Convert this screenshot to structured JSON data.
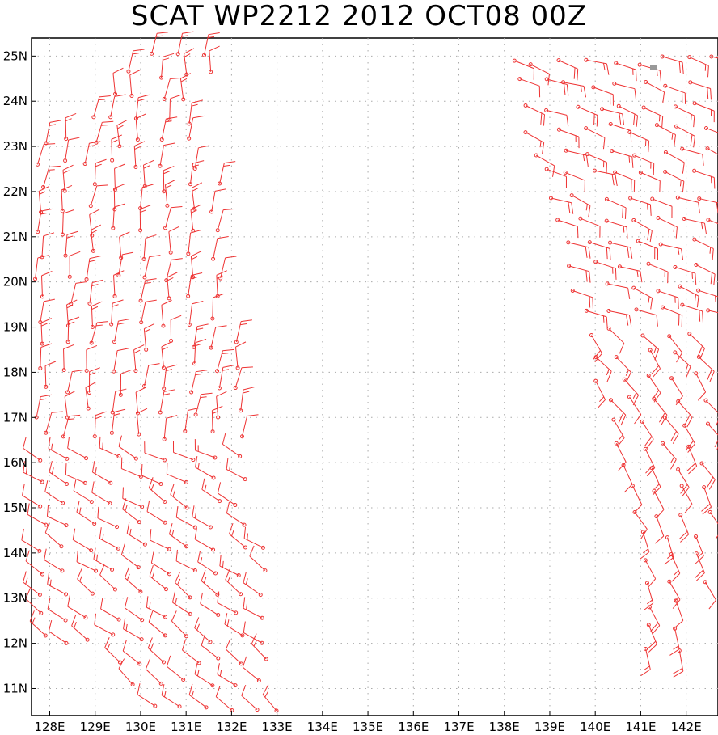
{
  "title": "SCAT WP2212 2012 OCT08 00Z",
  "map": {
    "lon_range": [
      127.6,
      142.7
    ],
    "lat_range": [
      10.4,
      25.4
    ],
    "lon_ticks": [
      "128E",
      "129E",
      "130E",
      "131E",
      "132E",
      "133E",
      "134E",
      "135E",
      "136E",
      "137E",
      "138E",
      "139E",
      "140E",
      "141E",
      "142E"
    ],
    "lat_ticks": [
      "11N",
      "12N",
      "13N",
      "14N",
      "15N",
      "16N",
      "17N",
      "18N",
      "19N",
      "20N",
      "21N",
      "22N",
      "23N",
      "24N",
      "25N"
    ],
    "grid": "dotted",
    "barb_color": "#ee3333",
    "swaths": [
      {
        "name": "west",
        "lon_range": [
          127.7,
          133.5
        ],
        "lat_range": [
          10.4,
          25.4
        ]
      },
      {
        "name": "east",
        "lon_range": [
          138.1,
          142.7
        ],
        "lat_range": [
          11.8,
          25.2
        ]
      }
    ]
  }
}
